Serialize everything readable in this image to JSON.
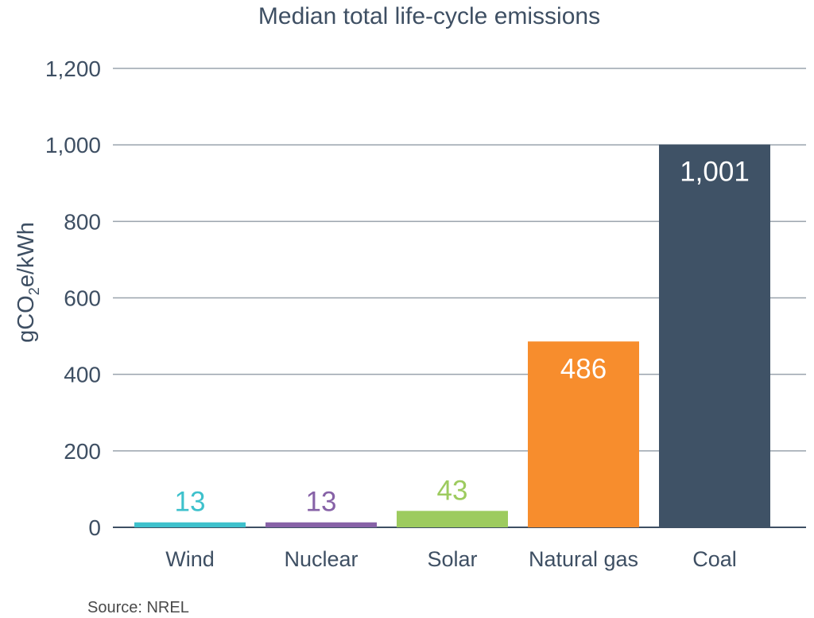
{
  "chart_data": {
    "type": "bar",
    "title": "Median total life-cycle emissions",
    "ylabel": {
      "pre": "gCO",
      "sub": "2",
      "post": "e/kWh"
    },
    "categories": [
      "Wind",
      "Nuclear",
      "Solar",
      "Natural gas",
      "Coal"
    ],
    "values": [
      13,
      13,
      43,
      486,
      1001
    ],
    "data_labels": [
      "13",
      "13",
      "43",
      "486",
      "1,001"
    ],
    "colors": [
      "#3ec1cc",
      "#8762a7",
      "#9dcb5f",
      "#f78d2d",
      "#3f5266"
    ],
    "label_colors": [
      "#3ec1cc",
      "#8762a7",
      "#9dcb5f",
      "#ffffff",
      "#ffffff"
    ],
    "label_inside": [
      false,
      false,
      false,
      true,
      true
    ],
    "ylim": [
      0,
      1200
    ],
    "yticks": [
      0,
      200,
      400,
      600,
      800,
      1000,
      1200
    ],
    "ytick_labels": [
      "0",
      "200",
      "400",
      "600",
      "800",
      "1,000",
      "1,200"
    ],
    "grid": true,
    "source": "Source: NREL"
  }
}
